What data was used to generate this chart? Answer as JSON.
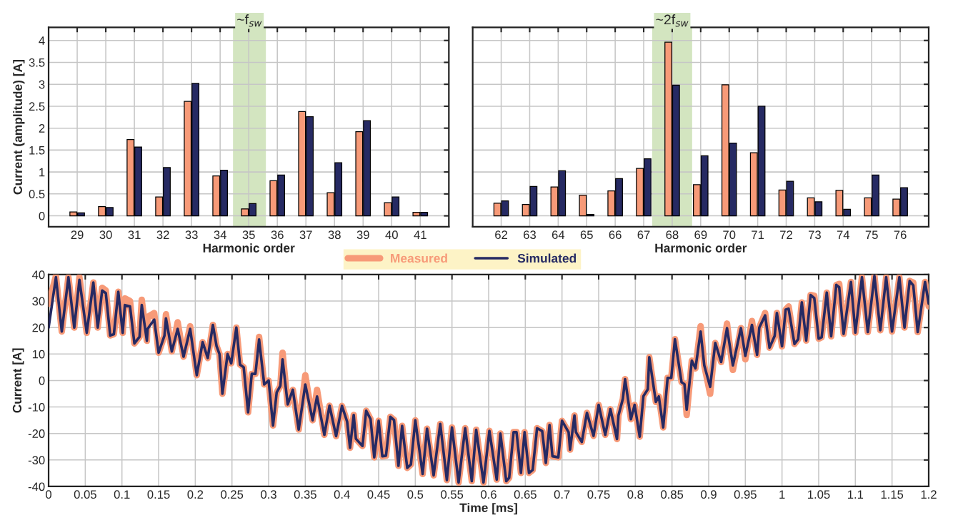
{
  "chart_data": [
    {
      "type": "bar",
      "ylabel": "Current (amplitude) [A]",
      "xlabel": "Harmonic order",
      "x": [
        29,
        30,
        31,
        32,
        33,
        34,
        35,
        36,
        37,
        38,
        39,
        40,
        41
      ],
      "xlim": [
        28,
        42
      ],
      "xticks": [
        29,
        30,
        31,
        32,
        33,
        34,
        35,
        36,
        37,
        38,
        39,
        40,
        41
      ],
      "ylim": [
        -0.25,
        4.3
      ],
      "yticks": [
        0,
        0.5,
        1,
        1.5,
        2,
        2.5,
        3,
        3.5,
        4
      ],
      "grid": true,
      "bands": [
        {
          "axis": "x",
          "from": 34.45,
          "to": 35.6,
          "label": "~f$_{sw}$",
          "color": "#d3e5c0"
        }
      ],
      "series": [
        {
          "color": "#f79a78",
          "values": [
            0.09,
            0.21,
            1.74,
            0.43,
            2.61,
            0.91,
            0.16,
            0.8,
            2.38,
            0.53,
            1.92,
            0.3,
            0.08
          ]
        },
        {
          "color": "#262a63",
          "values": [
            0.07,
            0.19,
            1.57,
            1.1,
            3.02,
            1.04,
            0.28,
            0.93,
            2.26,
            1.21,
            2.17,
            0.43,
            0.08
          ]
        }
      ]
    },
    {
      "type": "bar",
      "xlabel": "Harmonic order",
      "tick_labels": "x",
      "x": [
        62,
        63,
        64,
        65,
        66,
        67,
        68,
        69,
        70,
        71,
        72,
        73,
        74,
        75,
        76
      ],
      "xlim": [
        61,
        77
      ],
      "xticks": [
        62,
        63,
        64,
        65,
        66,
        67,
        68,
        69,
        70,
        71,
        72,
        73,
        74,
        75,
        76
      ],
      "ylim": [
        -0.25,
        4.3
      ],
      "yticks": [
        0,
        0.5,
        1,
        1.5,
        2,
        2.5,
        3,
        3.5,
        4
      ],
      "grid": true,
      "bands": [
        {
          "axis": "x",
          "from": 67.3,
          "to": 68.7,
          "label": "~2f$_{sw}$",
          "color": "#d3e5c0"
        }
      ],
      "series": [
        {
          "color": "#f79a78",
          "values": [
            0.29,
            0.26,
            0.66,
            0.47,
            0.57,
            1.08,
            3.96,
            0.71,
            2.99,
            1.44,
            0.59,
            0.41,
            0.58,
            0.41,
            0.38
          ]
        },
        {
          "color": "#262a63",
          "values": [
            0.34,
            0.67,
            1.03,
            0.03,
            0.85,
            1.3,
            2.98,
            1.37,
            1.66,
            2.5,
            0.79,
            0.32,
            0.15,
            0.93,
            0.64
          ]
        }
      ]
    },
    {
      "type": "line",
      "xlabel": "Time [ms]",
      "ylabel": "Current [A]",
      "legend": "top",
      "grid": true,
      "xlim": [
        0,
        1.2
      ],
      "xticks": [
        0,
        0.05,
        0.1,
        0.15,
        0.2,
        0.25,
        0.3,
        0.35,
        0.4,
        0.45,
        0.5,
        0.55,
        0.6,
        0.65,
        0.7,
        0.75,
        0.8,
        0.85,
        0.9,
        0.95,
        1,
        1.05,
        1.1,
        1.15,
        1.2
      ],
      "ylim": [
        -40,
        40
      ],
      "yticks": [
        -40,
        -30,
        -20,
        -10,
        0,
        10,
        20,
        30,
        40
      ],
      "x": [
        0,
        0.01,
        0.018,
        0.027,
        0.035,
        0.042,
        0.052,
        0.061,
        0.067,
        0.073,
        0.078,
        0.084,
        0.089,
        0.095,
        0.101,
        0.104,
        0.111,
        0.117,
        0.124,
        0.127,
        0.134,
        0.135,
        0.144,
        0.15,
        0.158,
        0.16,
        0.168,
        0.176,
        0.184,
        0.193,
        0.202,
        0.21,
        0.217,
        0.224,
        0.229,
        0.233,
        0.237,
        0.244,
        0.249,
        0.256,
        0.261,
        0.266,
        0.272,
        0.277,
        0.282,
        0.287,
        0.294,
        0.3,
        0.306,
        0.311,
        0.316,
        0.319,
        0.326,
        0.333,
        0.341,
        0.35,
        0.36,
        0.366,
        0.376,
        0.383,
        0.392,
        0.4,
        0.407,
        0.411,
        0.416,
        0.419,
        0.428,
        0.433,
        0.439,
        0.444,
        0.45,
        0.455,
        0.46,
        0.466,
        0.471,
        0.477,
        0.482,
        0.489,
        0.494,
        0.5,
        0.51,
        0.516,
        0.525,
        0.534,
        0.543,
        0.55,
        0.559,
        0.568,
        0.577,
        0.583,
        0.593,
        0.601,
        0.611,
        0.616,
        0.624,
        0.628,
        0.634,
        0.638,
        0.644,
        0.649,
        0.655,
        0.66,
        0.666,
        0.673,
        0.678,
        0.683,
        0.687,
        0.695,
        0.7,
        0.709,
        0.711,
        0.717,
        0.719,
        0.727,
        0.734,
        0.743,
        0.75,
        0.759,
        0.766,
        0.775,
        0.777,
        0.783,
        0.786,
        0.794,
        0.799,
        0.806,
        0.811,
        0.817,
        0.819,
        0.828,
        0.832,
        0.838,
        0.844,
        0.849,
        0.854,
        0.863,
        0.867,
        0.87,
        0.877,
        0.882,
        0.889,
        0.894,
        0.902,
        0.909,
        0.917,
        0.925,
        0.933,
        0.944,
        0.95,
        0.959,
        0.966,
        0.969,
        0.977,
        0.983,
        0.99,
        0.993,
        1.0,
        1.005,
        1.009,
        1.017,
        1.022,
        1.027,
        1.033,
        1.039,
        1.044,
        1.05,
        1.054,
        1.061,
        1.067,
        1.074,
        1.078,
        1.084,
        1.094,
        1.1,
        1.109,
        1.117,
        1.126,
        1.134,
        1.142,
        1.15,
        1.16,
        1.167,
        1.174,
        1.179,
        1.185,
        1.195,
        1.2
      ],
      "series": [
        {
          "name": "Measured",
          "color": "#f79a78",
          "values": [
            29,
            39.5,
            18.5,
            39,
            20,
            39,
            18,
            37,
            20,
            35,
            34,
            17,
            17.5,
            33.5,
            18,
            31,
            30,
            14,
            16.5,
            30.5,
            15,
            24,
            25.5,
            10.5,
            17,
            25,
            11,
            22,
            9,
            20.5,
            2,
            14.5,
            8.5,
            21,
            13,
            10,
            -5,
            10,
            6.5,
            20,
            6,
            5,
            -12,
            2.5,
            2.5,
            16.5,
            -1.5,
            0,
            -17,
            -4.5,
            -2,
            10.5,
            -9,
            -3.5,
            -18.5,
            2,
            -15,
            -3.5,
            -20.5,
            -9.5,
            -21,
            -9.6,
            -15.5,
            -25.4,
            -13,
            -22,
            -24.7,
            -11.4,
            -14.6,
            -29,
            -15.2,
            -28.6,
            -28.4,
            -13.7,
            -14.9,
            -32.2,
            -17.1,
            -33,
            -31.7,
            -15,
            -35.3,
            -18.2,
            -35.8,
            -16.4,
            -37.6,
            -17.7,
            -38.5,
            -18,
            -38,
            -18.6,
            -38.5,
            -19,
            -37.4,
            -20,
            -38,
            -36.7,
            -19.5,
            -19.5,
            -34.9,
            -19.5,
            -34.9,
            -33.8,
            -18,
            -19.1,
            -31.1,
            -16.8,
            -28.6,
            -29,
            -15.2,
            -19.5,
            -26.1,
            -13.2,
            -19.5,
            -23.2,
            -12.2,
            -20.9,
            -9.2,
            -20.5,
            -10.8,
            -22.1,
            -13.2,
            -6.9,
            0.5,
            -14.6,
            -9.2,
            -21.2,
            -5.9,
            -3.3,
            8.8,
            -8.1,
            -6,
            -17.7,
            1,
            1,
            15.6,
            -0.6,
            -1.4,
            -13,
            7.5,
            4.6,
            20.5,
            5.7,
            -5,
            14.2,
            7,
            21.5,
            4,
            19.8,
            8,
            22.5,
            9.7,
            20,
            25.5,
            12.4,
            16.9,
            25.5,
            12.9,
            26.8,
            28,
            13.8,
            15.6,
            29.5,
            15.1,
            32.3,
            32,
            15.8,
            16.3,
            33.2,
            16.7,
            36.1,
            36.5,
            17.6,
            37.2,
            18.1,
            39,
            18.3,
            39.5,
            19,
            39,
            18.5,
            39,
            20,
            37.6,
            37,
            18.3,
            37.2,
            28
          ]
        },
        {
          "name": "Simulated",
          "color": "#262a63",
          "values": [
            20,
            39,
            18.5,
            39,
            20,
            38,
            18,
            37,
            20,
            34,
            33,
            17,
            17.5,
            33.5,
            18,
            28.5,
            28,
            14,
            16.5,
            28.5,
            15,
            19.5,
            23,
            10.5,
            17,
            23.5,
            11,
            19.5,
            9,
            19.5,
            2,
            14.5,
            8.5,
            21,
            13,
            10,
            -5,
            10,
            6.5,
            20,
            6,
            5,
            -12,
            2.5,
            2.5,
            15.5,
            -1.5,
            0,
            -17,
            -4.5,
            -2,
            8,
            -9,
            -3.5,
            -18.5,
            -1.5,
            -15,
            -6,
            -20.5,
            -9.5,
            -21,
            -9.6,
            -15.5,
            -25.4,
            -13,
            -22,
            -24.7,
            -11.4,
            -14.6,
            -29,
            -15.2,
            -28.6,
            -28.4,
            -13.7,
            -14.9,
            -32.2,
            -17.1,
            -33,
            -31.7,
            -15,
            -35.3,
            -18.2,
            -35.8,
            -16.4,
            -37.6,
            -17.7,
            -38.5,
            -18,
            -38,
            -18.6,
            -38.5,
            -19,
            -37.4,
            -20,
            -38,
            -36.7,
            -19.5,
            -19.5,
            -34.9,
            -19.5,
            -34.9,
            -33.8,
            -18,
            -19.1,
            -31.1,
            -16.8,
            -28.6,
            -29,
            -15.2,
            -19.5,
            -26.1,
            -13.2,
            -19.5,
            -23.2,
            -12.2,
            -20.9,
            -9.2,
            -20.5,
            -10.8,
            -22.1,
            -13.2,
            -6.9,
            0.5,
            -14.6,
            -9.2,
            -21.2,
            -5.9,
            -3.3,
            8.8,
            -8.1,
            -6,
            -17.7,
            1,
            1,
            15.6,
            -0.6,
            -1.4,
            -11,
            7.5,
            4.6,
            18.5,
            5.7,
            -2.4,
            14.2,
            7,
            19.8,
            5.7,
            19.8,
            9.3,
            21,
            9.7,
            20,
            24.6,
            12.4,
            16.9,
            25.5,
            12.9,
            26.8,
            27.1,
            13.8,
            15.6,
            29.5,
            15.1,
            32.3,
            31.1,
            15.8,
            16.3,
            33.2,
            16.7,
            36.1,
            35.2,
            17.6,
            37.2,
            18.1,
            39,
            18.3,
            39.5,
            19,
            39,
            18.5,
            39,
            20,
            37.6,
            35.9,
            18.3,
            37.2,
            29
          ]
        }
      ]
    }
  ]
}
